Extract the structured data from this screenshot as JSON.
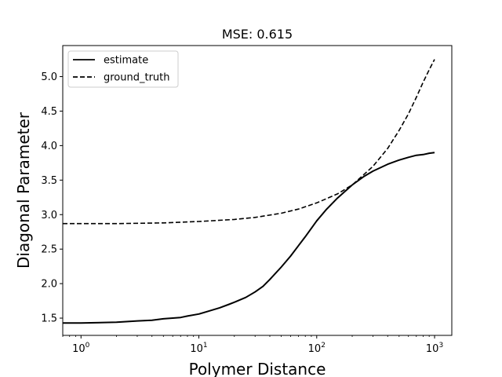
{
  "chart_data": {
    "type": "line",
    "title": "MSE: 0.615",
    "xlabel": "Polymer Distance",
    "ylabel": "Diagonal Parameter",
    "xscale": "log",
    "xlim": [
      0.7,
      1400
    ],
    "ylim": [
      1.25,
      5.45
    ],
    "xticks": [
      {
        "value": 1,
        "base": "10",
        "exp": "0"
      },
      {
        "value": 10,
        "base": "10",
        "exp": "1"
      },
      {
        "value": 100,
        "base": "10",
        "exp": "2"
      },
      {
        "value": 1000,
        "base": "10",
        "exp": "3"
      }
    ],
    "yticks": [
      {
        "value": 1.5,
        "label": "1.5"
      },
      {
        "value": 2.0,
        "label": "2.0"
      },
      {
        "value": 2.5,
        "label": "2.5"
      },
      {
        "value": 3.0,
        "label": "3.0"
      },
      {
        "value": 3.5,
        "label": "3.5"
      },
      {
        "value": 4.0,
        "label": "4.0"
      },
      {
        "value": 4.5,
        "label": "4.5"
      },
      {
        "value": 5.0,
        "label": "5.0"
      }
    ],
    "grid": false,
    "legend_position": "top-left",
    "series": [
      {
        "name": "estimate",
        "style": "solid",
        "color": "#000000",
        "x": [
          0.7,
          1,
          2,
          3,
          4,
          5,
          6,
          7,
          8,
          10,
          12,
          15,
          18,
          20,
          25,
          30,
          35,
          40,
          50,
          60,
          70,
          80,
          100,
          120,
          150,
          200,
          250,
          300,
          400,
          500,
          600,
          700,
          800,
          900,
          1000
        ],
        "y": [
          1.43,
          1.43,
          1.44,
          1.46,
          1.47,
          1.49,
          1.5,
          1.51,
          1.53,
          1.56,
          1.6,
          1.65,
          1.7,
          1.73,
          1.8,
          1.88,
          1.96,
          2.06,
          2.24,
          2.4,
          2.55,
          2.68,
          2.91,
          3.07,
          3.24,
          3.43,
          3.55,
          3.63,
          3.73,
          3.79,
          3.83,
          3.86,
          3.87,
          3.89,
          3.9
        ]
      },
      {
        "name": "ground_truth",
        "style": "dashed",
        "color": "#000000",
        "x": [
          0.7,
          1,
          2,
          5,
          10,
          20,
          30,
          50,
          70,
          100,
          150,
          200,
          300,
          400,
          500,
          600,
          700,
          800,
          900,
          1000
        ],
        "y": [
          2.87,
          2.87,
          2.87,
          2.88,
          2.9,
          2.93,
          2.96,
          3.02,
          3.08,
          3.17,
          3.3,
          3.43,
          3.7,
          3.96,
          4.22,
          4.46,
          4.7,
          4.92,
          5.1,
          5.25
        ]
      }
    ]
  }
}
